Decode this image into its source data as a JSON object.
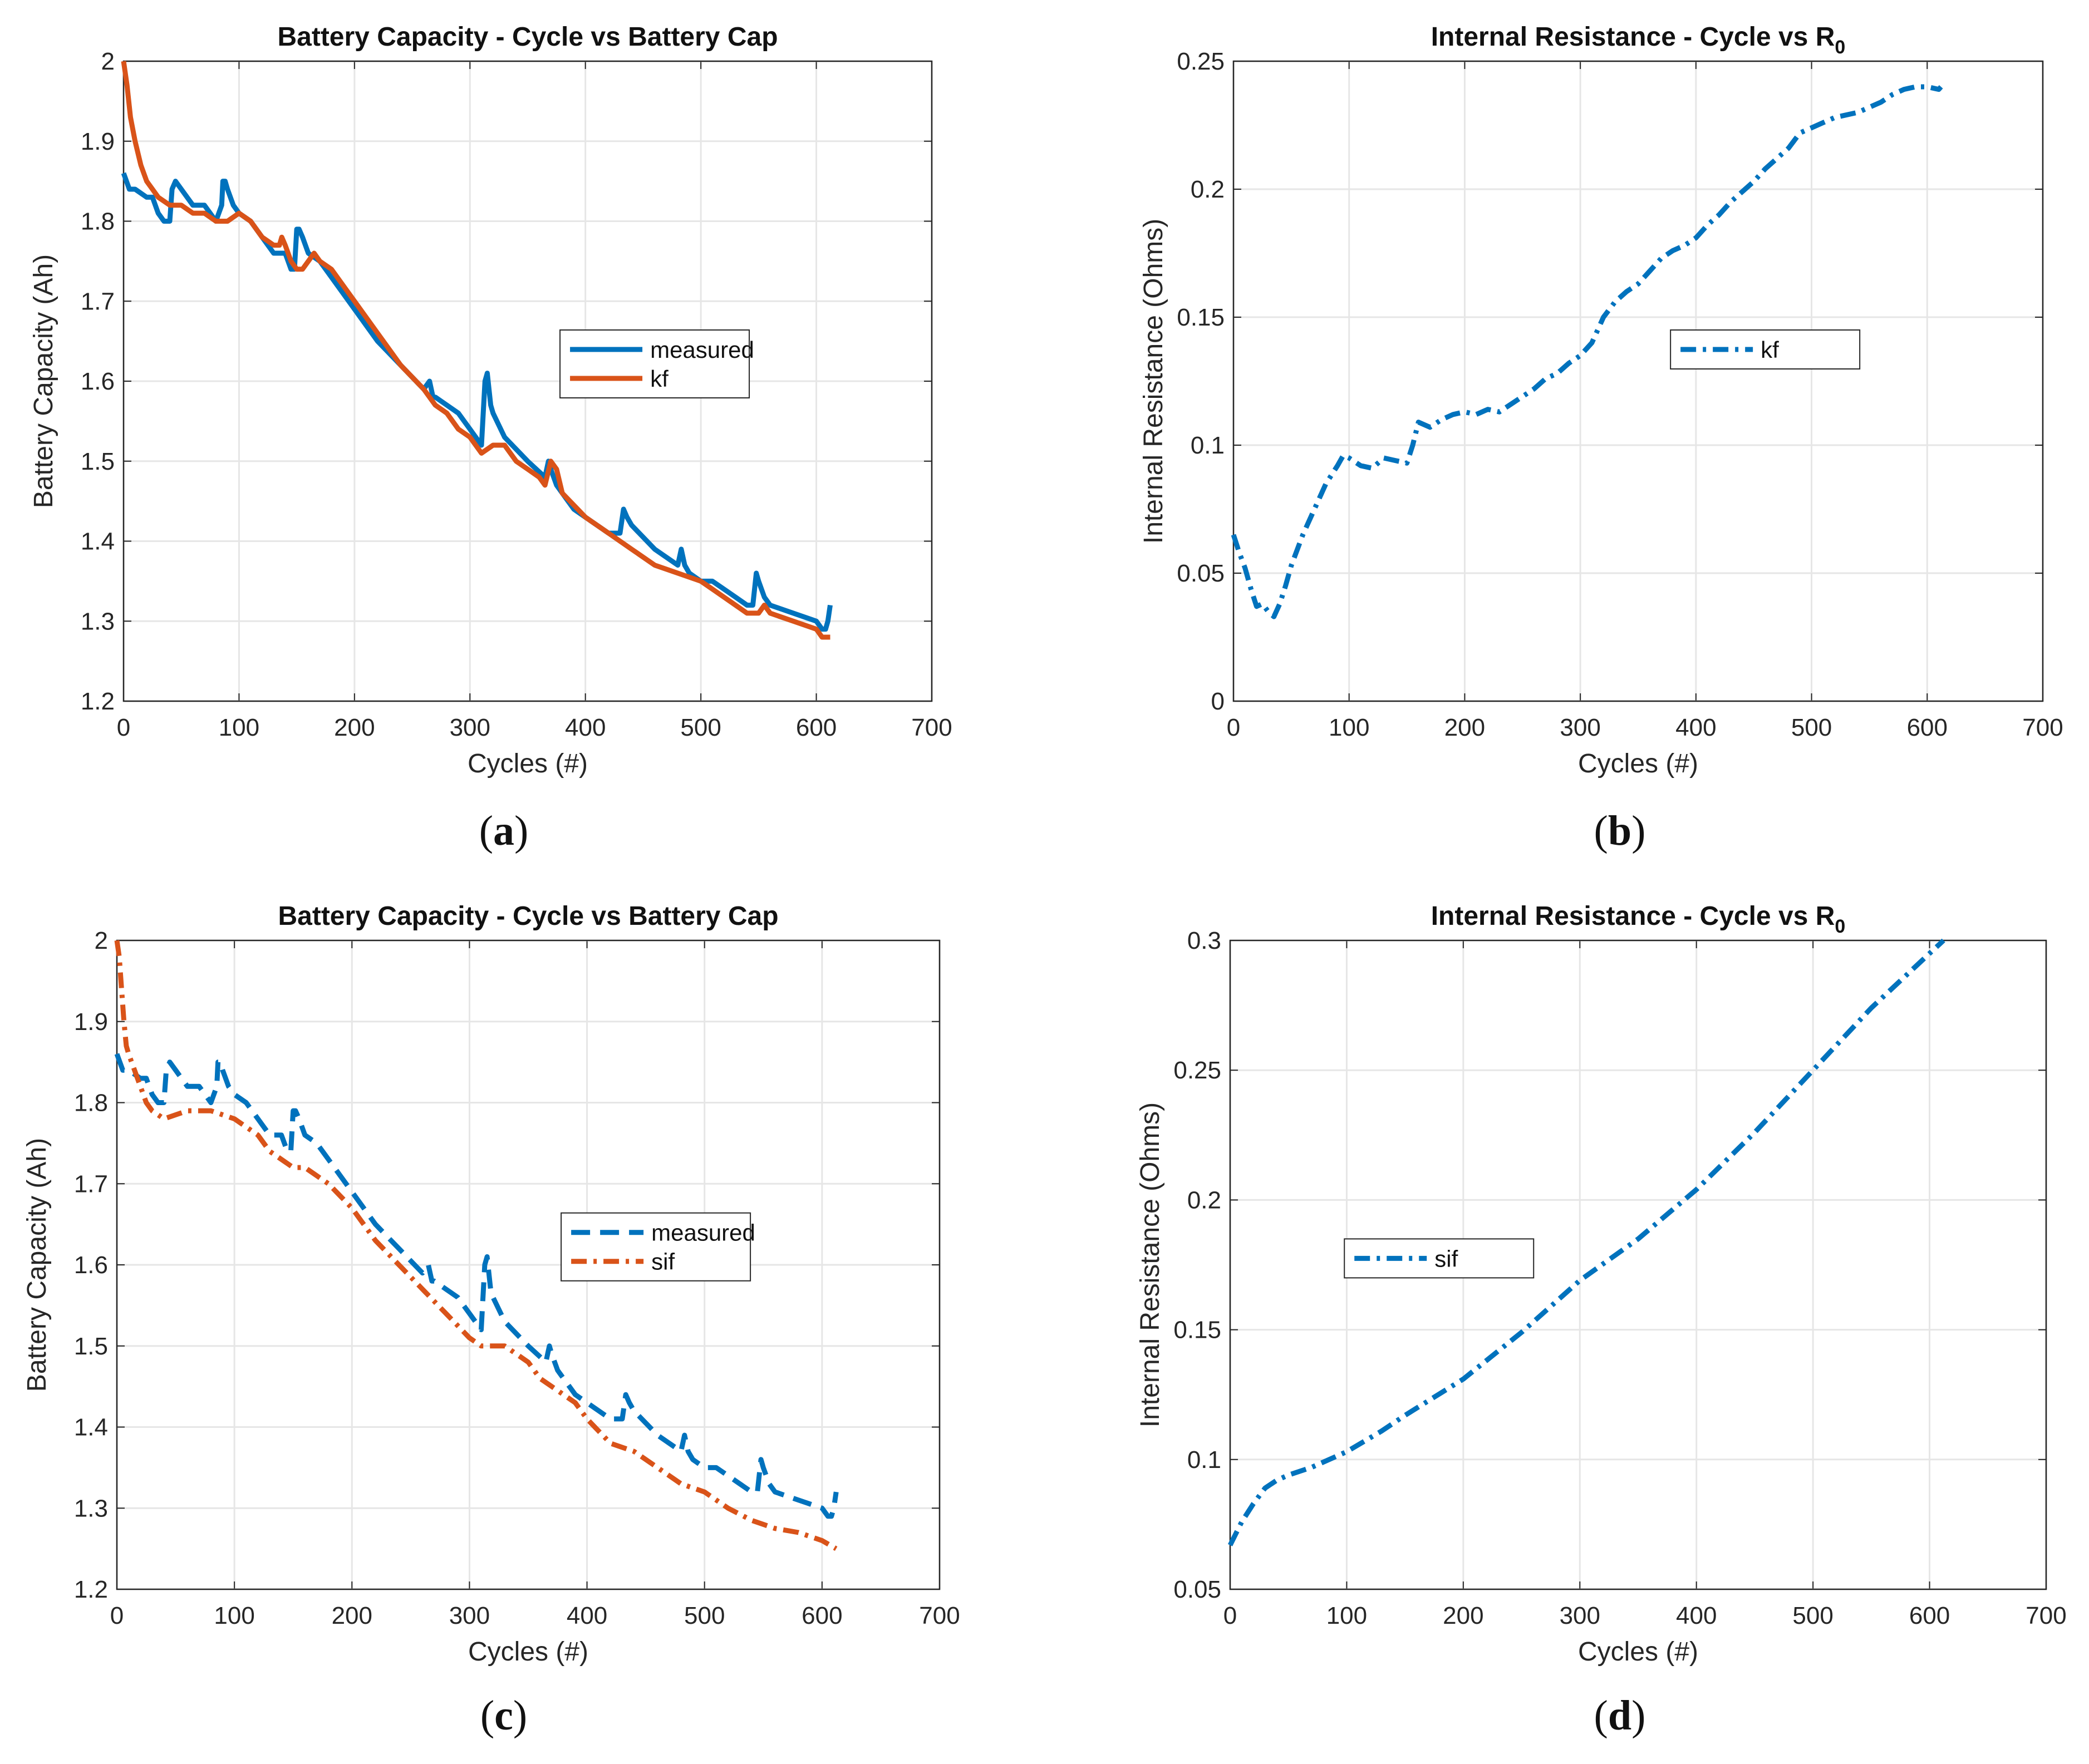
{
  "figure": {
    "captions": [
      {
        "open": "(",
        "letter": "a",
        "close": ")"
      },
      {
        "open": "(",
        "letter": "b",
        "close": ")"
      },
      {
        "open": "(",
        "letter": "c",
        "close": ")"
      },
      {
        "open": "(",
        "letter": "d",
        "close": ")"
      }
    ]
  },
  "colors": {
    "blue": "#0072BD",
    "orange": "#D95319",
    "grid": "#E6E6E6",
    "axis": "#262626"
  },
  "chart_data": [
    {
      "id": "a",
      "type": "line",
      "title": "Battery Capacity - Cycle vs Battery Cap",
      "title_sub": "",
      "xlabel": "Cycles (#)",
      "ylabel": "Battery Capacity (Ah)",
      "xlim": [
        0,
        700
      ],
      "ylim": [
        1.2,
        2.0
      ],
      "xticks": [
        0,
        100,
        200,
        300,
        400,
        500,
        600,
        700
      ],
      "xtick_labels": [
        "0",
        "100",
        "200",
        "300",
        "400",
        "500",
        "600",
        "700"
      ],
      "yticks": [
        1.2,
        1.3,
        1.4,
        1.5,
        1.6,
        1.7,
        1.8,
        1.9,
        2.0
      ],
      "ytick_labels": [
        "1.2",
        "1.3",
        "1.4",
        "1.5",
        "1.6",
        "1.7",
        "1.8",
        "1.9",
        "2"
      ],
      "grid": true,
      "legend": "center-right",
      "series": [
        {
          "name": "measured",
          "color": "#0072BD",
          "style": "solid",
          "x": [
            0,
            5,
            10,
            20,
            25,
            30,
            35,
            40,
            42,
            45,
            50,
            55,
            60,
            65,
            70,
            75,
            80,
            85,
            86,
            88,
            90,
            95,
            100,
            110,
            120,
            130,
            140,
            145,
            148,
            150,
            152,
            155,
            160,
            170,
            180,
            200,
            220,
            240,
            260,
            265,
            268,
            270,
            280,
            290,
            300,
            305,
            310,
            313,
            315,
            318,
            320,
            330,
            350,
            365,
            368,
            370,
            375,
            380,
            390,
            400,
            420,
            430,
            433,
            436,
            440,
            460,
            480,
            483,
            486,
            490,
            500,
            510,
            520,
            530,
            540,
            545,
            548,
            550,
            555,
            560,
            580,
            600,
            605,
            608,
            610,
            612
          ],
          "y": [
            1.86,
            1.84,
            1.84,
            1.83,
            1.83,
            1.81,
            1.8,
            1.8,
            1.84,
            1.85,
            1.84,
            1.83,
            1.82,
            1.82,
            1.82,
            1.81,
            1.8,
            1.82,
            1.85,
            1.85,
            1.84,
            1.82,
            1.81,
            1.8,
            1.78,
            1.76,
            1.76,
            1.74,
            1.74,
            1.79,
            1.79,
            1.78,
            1.76,
            1.75,
            1.73,
            1.69,
            1.65,
            1.62,
            1.59,
            1.6,
            1.58,
            1.58,
            1.57,
            1.56,
            1.54,
            1.53,
            1.52,
            1.6,
            1.61,
            1.57,
            1.56,
            1.53,
            1.5,
            1.48,
            1.5,
            1.49,
            1.47,
            1.46,
            1.44,
            1.43,
            1.41,
            1.41,
            1.44,
            1.43,
            1.42,
            1.39,
            1.37,
            1.39,
            1.37,
            1.36,
            1.35,
            1.35,
            1.34,
            1.33,
            1.32,
            1.32,
            1.36,
            1.35,
            1.33,
            1.32,
            1.31,
            1.3,
            1.29,
            1.29,
            1.3,
            1.32
          ]
        },
        {
          "name": "kf",
          "color": "#D95319",
          "style": "solid",
          "x": [
            0,
            3,
            6,
            10,
            15,
            20,
            25,
            30,
            40,
            50,
            60,
            70,
            80,
            90,
            100,
            110,
            120,
            130,
            135,
            137,
            140,
            145,
            150,
            155,
            160,
            165,
            170,
            180,
            200,
            220,
            240,
            260,
            270,
            280,
            290,
            300,
            310,
            320,
            330,
            340,
            350,
            360,
            365,
            370,
            375,
            380,
            400,
            420,
            440,
            460,
            480,
            500,
            510,
            520,
            530,
            540,
            550,
            555,
            560,
            580,
            600,
            605,
            610,
            612
          ],
          "y": [
            2.0,
            1.97,
            1.93,
            1.9,
            1.87,
            1.85,
            1.84,
            1.83,
            1.82,
            1.82,
            1.81,
            1.81,
            1.8,
            1.8,
            1.81,
            1.8,
            1.78,
            1.77,
            1.77,
            1.78,
            1.77,
            1.75,
            1.74,
            1.74,
            1.75,
            1.76,
            1.75,
            1.74,
            1.7,
            1.66,
            1.62,
            1.59,
            1.57,
            1.56,
            1.54,
            1.53,
            1.51,
            1.52,
            1.52,
            1.5,
            1.49,
            1.48,
            1.47,
            1.5,
            1.49,
            1.46,
            1.43,
            1.41,
            1.39,
            1.37,
            1.36,
            1.35,
            1.34,
            1.33,
            1.32,
            1.31,
            1.31,
            1.32,
            1.31,
            1.3,
            1.29,
            1.28,
            1.28,
            1.28
          ]
        }
      ]
    },
    {
      "id": "b",
      "type": "line",
      "title": "Internal Resistance - Cycle vs R",
      "title_sub": "0",
      "xlabel": "Cycles (#)",
      "ylabel": "Internal Resistance (Ohms)",
      "xlim": [
        0,
        700
      ],
      "ylim": [
        0,
        0.25
      ],
      "xticks": [
        0,
        100,
        200,
        300,
        400,
        500,
        600,
        700
      ],
      "xtick_labels": [
        "0",
        "100",
        "200",
        "300",
        "400",
        "500",
        "600",
        "700"
      ],
      "yticks": [
        0,
        0.05,
        0.1,
        0.15,
        0.2,
        0.25
      ],
      "ytick_labels": [
        "0",
        "0.05",
        "0.1",
        "0.15",
        "0.2",
        "0.25"
      ],
      "grid": true,
      "legend": "center-right",
      "series": [
        {
          "name": "kf",
          "color": "#0072BD",
          "style": "dashdot",
          "x": [
            0,
            5,
            10,
            15,
            20,
            25,
            30,
            35,
            40,
            45,
            50,
            60,
            70,
            80,
            90,
            95,
            100,
            110,
            120,
            130,
            140,
            150,
            155,
            160,
            170,
            180,
            190,
            200,
            210,
            220,
            230,
            240,
            250,
            260,
            270,
            280,
            290,
            300,
            310,
            320,
            330,
            340,
            350,
            360,
            370,
            380,
            390,
            400,
            410,
            420,
            430,
            440,
            450,
            460,
            470,
            480,
            490,
            500,
            510,
            520,
            540,
            560,
            570,
            580,
            590,
            600,
            610,
            612
          ],
          "y": [
            0.065,
            0.058,
            0.052,
            0.044,
            0.037,
            0.038,
            0.035,
            0.033,
            0.038,
            0.045,
            0.053,
            0.065,
            0.075,
            0.085,
            0.092,
            0.096,
            0.095,
            0.092,
            0.091,
            0.095,
            0.094,
            0.093,
            0.1,
            0.109,
            0.107,
            0.11,
            0.112,
            0.113,
            0.112,
            0.114,
            0.113,
            0.116,
            0.119,
            0.122,
            0.126,
            0.128,
            0.132,
            0.135,
            0.14,
            0.15,
            0.156,
            0.16,
            0.163,
            0.168,
            0.173,
            0.176,
            0.178,
            0.181,
            0.186,
            0.19,
            0.195,
            0.199,
            0.203,
            0.208,
            0.212,
            0.216,
            0.222,
            0.224,
            0.226,
            0.228,
            0.23,
            0.234,
            0.237,
            0.239,
            0.24,
            0.24,
            0.239,
            0.24
          ]
        }
      ]
    },
    {
      "id": "c",
      "type": "line",
      "title": "Battery Capacity - Cycle vs Battery Cap",
      "title_sub": "",
      "xlabel": "Cycles (#)",
      "ylabel": "Battery Capacity (Ah)",
      "xlim": [
        0,
        700
      ],
      "ylim": [
        1.2,
        2.0
      ],
      "xticks": [
        0,
        100,
        200,
        300,
        400,
        500,
        600,
        700
      ],
      "xtick_labels": [
        "0",
        "100",
        "200",
        "300",
        "400",
        "500",
        "600",
        "700"
      ],
      "yticks": [
        1.2,
        1.3,
        1.4,
        1.5,
        1.6,
        1.7,
        1.8,
        1.9,
        2.0
      ],
      "ytick_labels": [
        "1.2",
        "1.3",
        "1.4",
        "1.5",
        "1.6",
        "1.7",
        "1.8",
        "1.9",
        "2"
      ],
      "grid": true,
      "legend": "center-right",
      "series": [
        {
          "name": "measured",
          "color": "#0072BD",
          "style": "dashed",
          "x": [
            0,
            5,
            10,
            20,
            25,
            30,
            35,
            40,
            42,
            45,
            50,
            55,
            60,
            65,
            70,
            75,
            80,
            85,
            86,
            88,
            90,
            95,
            100,
            110,
            120,
            130,
            140,
            145,
            148,
            150,
            152,
            155,
            160,
            170,
            180,
            200,
            220,
            240,
            260,
            265,
            268,
            270,
            280,
            290,
            300,
            305,
            310,
            313,
            315,
            318,
            320,
            330,
            350,
            365,
            368,
            370,
            375,
            380,
            390,
            400,
            420,
            430,
            433,
            436,
            440,
            460,
            480,
            483,
            486,
            490,
            500,
            510,
            520,
            530,
            540,
            545,
            548,
            550,
            555,
            560,
            580,
            600,
            605,
            608,
            610,
            612
          ],
          "y": [
            1.86,
            1.84,
            1.84,
            1.83,
            1.83,
            1.81,
            1.8,
            1.8,
            1.84,
            1.85,
            1.84,
            1.83,
            1.82,
            1.82,
            1.82,
            1.81,
            1.8,
            1.82,
            1.85,
            1.85,
            1.84,
            1.82,
            1.81,
            1.8,
            1.78,
            1.76,
            1.76,
            1.74,
            1.74,
            1.79,
            1.79,
            1.78,
            1.76,
            1.75,
            1.73,
            1.69,
            1.65,
            1.62,
            1.59,
            1.6,
            1.58,
            1.58,
            1.57,
            1.56,
            1.54,
            1.53,
            1.52,
            1.6,
            1.61,
            1.57,
            1.56,
            1.53,
            1.5,
            1.48,
            1.5,
            1.49,
            1.47,
            1.46,
            1.44,
            1.43,
            1.41,
            1.41,
            1.44,
            1.43,
            1.42,
            1.39,
            1.37,
            1.39,
            1.37,
            1.36,
            1.35,
            1.35,
            1.34,
            1.33,
            1.32,
            1.32,
            1.36,
            1.35,
            1.33,
            1.32,
            1.31,
            1.3,
            1.29,
            1.29,
            1.3,
            1.32
          ]
        },
        {
          "name": "sif",
          "color": "#D95319",
          "style": "dashdot",
          "x": [
            0,
            2,
            4,
            6,
            8,
            10,
            15,
            20,
            25,
            30,
            40,
            50,
            60,
            70,
            80,
            90,
            100,
            110,
            120,
            130,
            140,
            150,
            160,
            170,
            180,
            190,
            200,
            210,
            220,
            240,
            260,
            280,
            300,
            310,
            320,
            330,
            340,
            350,
            360,
            370,
            380,
            390,
            400,
            420,
            440,
            460,
            480,
            500,
            520,
            540,
            550,
            560,
            580,
            600,
            612
          ],
          "y": [
            2.0,
            1.98,
            1.94,
            1.9,
            1.87,
            1.86,
            1.84,
            1.82,
            1.8,
            1.79,
            1.78,
            1.785,
            1.79,
            1.79,
            1.79,
            1.785,
            1.78,
            1.77,
            1.76,
            1.74,
            1.73,
            1.72,
            1.72,
            1.71,
            1.7,
            1.685,
            1.67,
            1.65,
            1.63,
            1.6,
            1.57,
            1.54,
            1.51,
            1.5,
            1.5,
            1.5,
            1.49,
            1.48,
            1.46,
            1.45,
            1.44,
            1.43,
            1.41,
            1.38,
            1.37,
            1.35,
            1.33,
            1.32,
            1.3,
            1.285,
            1.28,
            1.275,
            1.27,
            1.26,
            1.25
          ]
        }
      ]
    },
    {
      "id": "d",
      "type": "line",
      "title": "Internal Resistance - Cycle vs R",
      "title_sub": "0",
      "xlabel": "Cycles (#)",
      "ylabel": "Internal Resistance (Ohms)",
      "xlim": [
        0,
        700
      ],
      "ylim": [
        0.05,
        0.3
      ],
      "xticks": [
        0,
        100,
        200,
        300,
        400,
        500,
        600,
        700
      ],
      "xtick_labels": [
        "0",
        "100",
        "200",
        "300",
        "400",
        "500",
        "600",
        "700"
      ],
      "yticks": [
        0.05,
        0.1,
        0.15,
        0.2,
        0.25,
        0.3
      ],
      "ytick_labels": [
        "0.05",
        "0.1",
        "0.15",
        "0.2",
        "0.25",
        "0.3"
      ],
      "grid": true,
      "legend": "center-left",
      "series": [
        {
          "name": "sif",
          "color": "#0072BD",
          "style": "dashdot",
          "x": [
            0,
            10,
            20,
            30,
            40,
            50,
            70,
            100,
            130,
            150,
            200,
            250,
            300,
            350,
            400,
            450,
            500,
            550,
            600,
            612
          ],
          "y": [
            0.067,
            0.076,
            0.083,
            0.089,
            0.092,
            0.094,
            0.097,
            0.103,
            0.111,
            0.117,
            0.131,
            0.149,
            0.169,
            0.185,
            0.204,
            0.226,
            0.25,
            0.274,
            0.295,
            0.3
          ]
        }
      ]
    }
  ]
}
